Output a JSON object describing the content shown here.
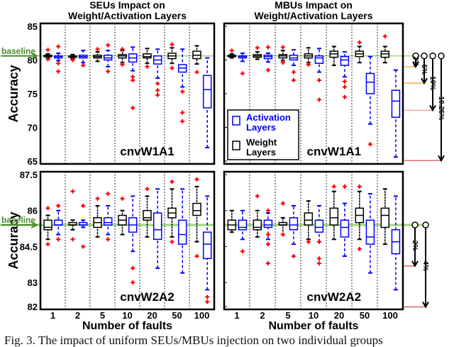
{
  "chart_data": [
    {
      "type": "box",
      "title": "SEUs Impact on Weight/Activation Layers",
      "panel_label": "cnvW1A1",
      "ylabel": "Accuracy",
      "ylim": [
        65,
        85
      ],
      "yticks": [
        "65",
        "70",
        "75",
        "80",
        "85"
      ],
      "baseline": 80.6,
      "categories": [
        "1",
        "2",
        "5",
        "10",
        "20",
        "50",
        "100"
      ],
      "series": [
        {
          "name": "Weight Layers",
          "color": "#000000",
          "boxes": [
            [
              80.3,
              80.5,
              80.6,
              80.7,
              80.9,
              [
                81.5,
                80.1
              ]
            ],
            [
              80.2,
              80.4,
              80.5,
              80.6,
              80.8,
              [
                80.0
              ]
            ],
            [
              79.8,
              80.3,
              80.5,
              80.7,
              81.2,
              [
                81.6
              ]
            ],
            [
              79.6,
              80.3,
              80.6,
              80.8,
              81.4,
              [
                81.6,
                79.3
              ]
            ],
            [
              79.5,
              80.3,
              80.5,
              80.9,
              81.7,
              [
                79.0
              ]
            ],
            [
              79.5,
              80.2,
              80.6,
              81.0,
              81.8,
              [
                82.3,
                78.8
              ]
            ],
            [
              79.4,
              80.2,
              80.7,
              81.3,
              82.1,
              [
                78.2
              ]
            ]
          ]
        },
        {
          "name": "Activation Layers",
          "color": "#0000ff",
          "boxes": [
            [
              79.9,
              80.3,
              80.5,
              80.6,
              81.0,
              [
                82.0,
                79.5,
                78.3
              ]
            ],
            [
              79.6,
              80.3,
              80.5,
              80.7,
              81.4,
              [
                79.2
              ]
            ],
            [
              79.0,
              80.0,
              80.3,
              80.7,
              81.4,
              [
                82.2,
                78.3
              ]
            ],
            [
              78.4,
              79.7,
              80.3,
              80.9,
              81.9,
              [
                77.5,
                77.0,
                72.9
              ]
            ],
            [
              77.3,
              79.4,
              80.0,
              80.6,
              81.6,
              [
                76.5,
                75.5,
                74.8
              ]
            ],
            [
              76.0,
              78.2,
              78.8,
              79.3,
              81.6,
              [
                75.3,
                72.2,
                70.9
              ]
            ],
            [
              67.0,
              72.9,
              75.6,
              77.7,
              80.3,
              []
            ]
          ]
        }
      ]
    },
    {
      "type": "box",
      "title": "MBUs Impact on Weight/Activation Layers",
      "panel_label": "cnvW1A1",
      "ylim": [
        65,
        85
      ],
      "baseline": 80.6,
      "categories": [
        "1",
        "2",
        "5",
        "10",
        "20",
        "50",
        "100"
      ],
      "legend": [
        "Activation Layers",
        "Weight Layers"
      ],
      "legend_position": "bottom-left",
      "series": [
        {
          "name": "Weight Layers",
          "color": "#000000",
          "boxes": [
            [
              80.3,
              80.5,
              80.6,
              80.7,
              80.9,
              [
                81.4
              ]
            ],
            [
              80.1,
              80.4,
              80.6,
              80.8,
              81.2,
              [
                81.8
              ]
            ],
            [
              79.9,
              80.3,
              80.6,
              80.8,
              81.4,
              [
                81.9,
                79.6
              ]
            ],
            [
              79.6,
              80.3,
              80.6,
              80.9,
              81.8,
              [
                79.3
              ]
            ],
            [
              79.2,
              80.4,
              80.9,
              81.3,
              82.0,
              []
            ],
            [
              79.6,
              80.5,
              80.9,
              81.3,
              82.0,
              [
                82.6
              ]
            ],
            [
              79.6,
              80.4,
              80.9,
              81.3,
              82.0,
              [
                83.5
              ]
            ]
          ]
        },
        {
          "name": "Activation Layers",
          "color": "#0000ff",
          "boxes": [
            [
              79.8,
              80.3,
              80.5,
              80.6,
              81.0,
              [
                78.0
              ]
            ],
            [
              79.7,
              80.2,
              80.5,
              80.7,
              81.0,
              [
                81.9,
                78.5
              ]
            ],
            [
              79.2,
              80.0,
              80.3,
              80.7,
              81.5,
              [
                78.2,
                77.0
              ]
            ],
            [
              78.2,
              79.5,
              80.3,
              80.6,
              81.7,
              [
                77.0,
                74.1
              ]
            ],
            [
              77.5,
              79.2,
              80.0,
              80.5,
              81.2,
              [
                76.8,
                76.0,
                74.5
              ]
            ],
            [
              70.5,
              75.0,
              76.7,
              78.0,
              80.5,
              [
                67.5
              ]
            ],
            [
              65.6,
              71.5,
              73.9,
              75.5,
              78.5,
              []
            ]
          ]
        }
      ],
      "annotations": [
        "2%",
        "5%",
        "10%",
        "19.25%"
      ]
    },
    {
      "type": "box",
      "panel_label": "cnvW2A2",
      "xlabel": "Number of faults",
      "ylabel": "Accuracy",
      "ylim": [
        82,
        87.5
      ],
      "yticks": [
        "82",
        "83",
        "84.5",
        "86",
        "87.5"
      ],
      "baseline": 85.4,
      "categories": [
        "1",
        "2",
        "5",
        "10",
        "20",
        "50",
        "100"
      ],
      "series": [
        {
          "name": "Weight Layers",
          "color": "#000000",
          "boxes": [
            [
              84.8,
              85.2,
              85.3,
              85.6,
              85.8,
              [
                86.1,
                84.6
              ]
            ],
            [
              85.2,
              85.4,
              85.4,
              85.5,
              85.6,
              [
                86.8,
                84.8
              ]
            ],
            [
              84.9,
              85.3,
              85.5,
              85.7,
              86.2,
              [
                86.5
              ]
            ],
            [
              85.0,
              85.4,
              85.6,
              85.8,
              86.0,
              [
                86.5
              ]
            ],
            [
              84.9,
              85.6,
              85.7,
              86.0,
              86.6,
              [
                86.9
              ]
            ],
            [
              84.9,
              85.7,
              85.9,
              86.1,
              86.9,
              [
                87.2,
                84.7
              ]
            ],
            [
              84.7,
              85.8,
              86.0,
              86.3,
              87.0,
              [
                87.3,
                84.1
              ]
            ]
          ]
        },
        {
          "name": "Activation Layers",
          "color": "#0000ff",
          "boxes": [
            [
              85.0,
              85.4,
              85.4,
              85.6,
              86.0,
              [
                86.2,
                84.8
              ]
            ],
            [
              85.3,
              85.4,
              85.4,
              85.5,
              85.6,
              [
                86.2,
                84.5
              ]
            ],
            [
              85.0,
              85.4,
              85.5,
              85.7,
              86.2,
              [
                86.7,
                84.8
              ]
            ],
            [
              84.3,
              85.1,
              85.4,
              85.7,
              86.6,
              [
                83.6,
                83.0
              ]
            ],
            [
              83.6,
              84.8,
              85.2,
              85.9,
              86.9,
              []
            ],
            [
              83.4,
              84.6,
              85.0,
              85.6,
              86.9,
              []
            ],
            [
              82.7,
              84.0,
              84.6,
              85.1,
              86.6,
              [
                82.4,
                82.2
              ]
            ]
          ]
        }
      ]
    },
    {
      "type": "box",
      "panel_label": "cnvW2A2",
      "xlabel": "Number of faults",
      "ylim": [
        82,
        87.5
      ],
      "baseline": 85.4,
      "categories": [
        "1",
        "2",
        "5",
        "10",
        "20",
        "50",
        "100"
      ],
      "series": [
        {
          "name": "Weight Layers",
          "color": "#000000",
          "boxes": [
            [
              85.1,
              85.2,
              85.4,
              85.6,
              86.0,
              []
            ],
            [
              84.9,
              85.2,
              85.3,
              85.6,
              86.0,
              [
                86.6
              ]
            ],
            [
              85.0,
              85.4,
              85.4,
              85.5,
              85.7,
              [
                86.3,
                85.0
              ]
            ],
            [
              84.8,
              85.4,
              85.6,
              85.9,
              86.4,
              [
                84.7
              ]
            ],
            [
              84.8,
              85.4,
              85.7,
              86.1,
              86.8,
              [
                87.0
              ]
            ],
            [
              84.8,
              85.5,
              85.8,
              86.1,
              86.8,
              [
                87.0,
                84.4
              ]
            ],
            [
              84.6,
              85.3,
              85.8,
              86.1,
              86.9,
              []
            ]
          ]
        },
        {
          "name": "Activation Layers",
          "color": "#0000ff",
          "boxes": [
            [
              84.8,
              85.2,
              85.3,
              85.6,
              86.0,
              [
                84.3
              ]
            ],
            [
              84.8,
              85.3,
              85.4,
              85.6,
              85.9,
              [
                86.0,
                85.0,
                84.6,
                83.8
              ]
            ],
            [
              84.6,
              85.2,
              85.4,
              85.7,
              86.2,
              [
                84.1
              ]
            ],
            [
              84.7,
              85.1,
              85.3,
              85.6,
              86.2,
              [
                84.7,
                84.0,
                83.8
              ]
            ],
            [
              84.1,
              84.9,
              85.3,
              85.6,
              86.3,
              [
                87.0
              ]
            ],
            [
              83.4,
              84.6,
              84.9,
              85.6,
              86.7,
              []
            ],
            [
              82.7,
              84.2,
              84.7,
              85.2,
              86.6,
              []
            ]
          ]
        }
      ],
      "annotations": [
        "2%",
        "4%"
      ]
    }
  ],
  "labels": {
    "baseline": "baseline",
    "legend_activation_1": "Activation",
    "legend_activation_2": "Layers",
    "legend_weight_1": "Weight",
    "legend_weight_2": "Layers",
    "caption": "Fig. 3.  The impact of uniform SEUs/MBUs injection on two individual groups"
  },
  "colors": {
    "weight": "#000000",
    "activation": "#0000ff",
    "outlier": "#ff0000",
    "baseline": "#9fd67a",
    "baseline_label": "#4a8a2a"
  }
}
